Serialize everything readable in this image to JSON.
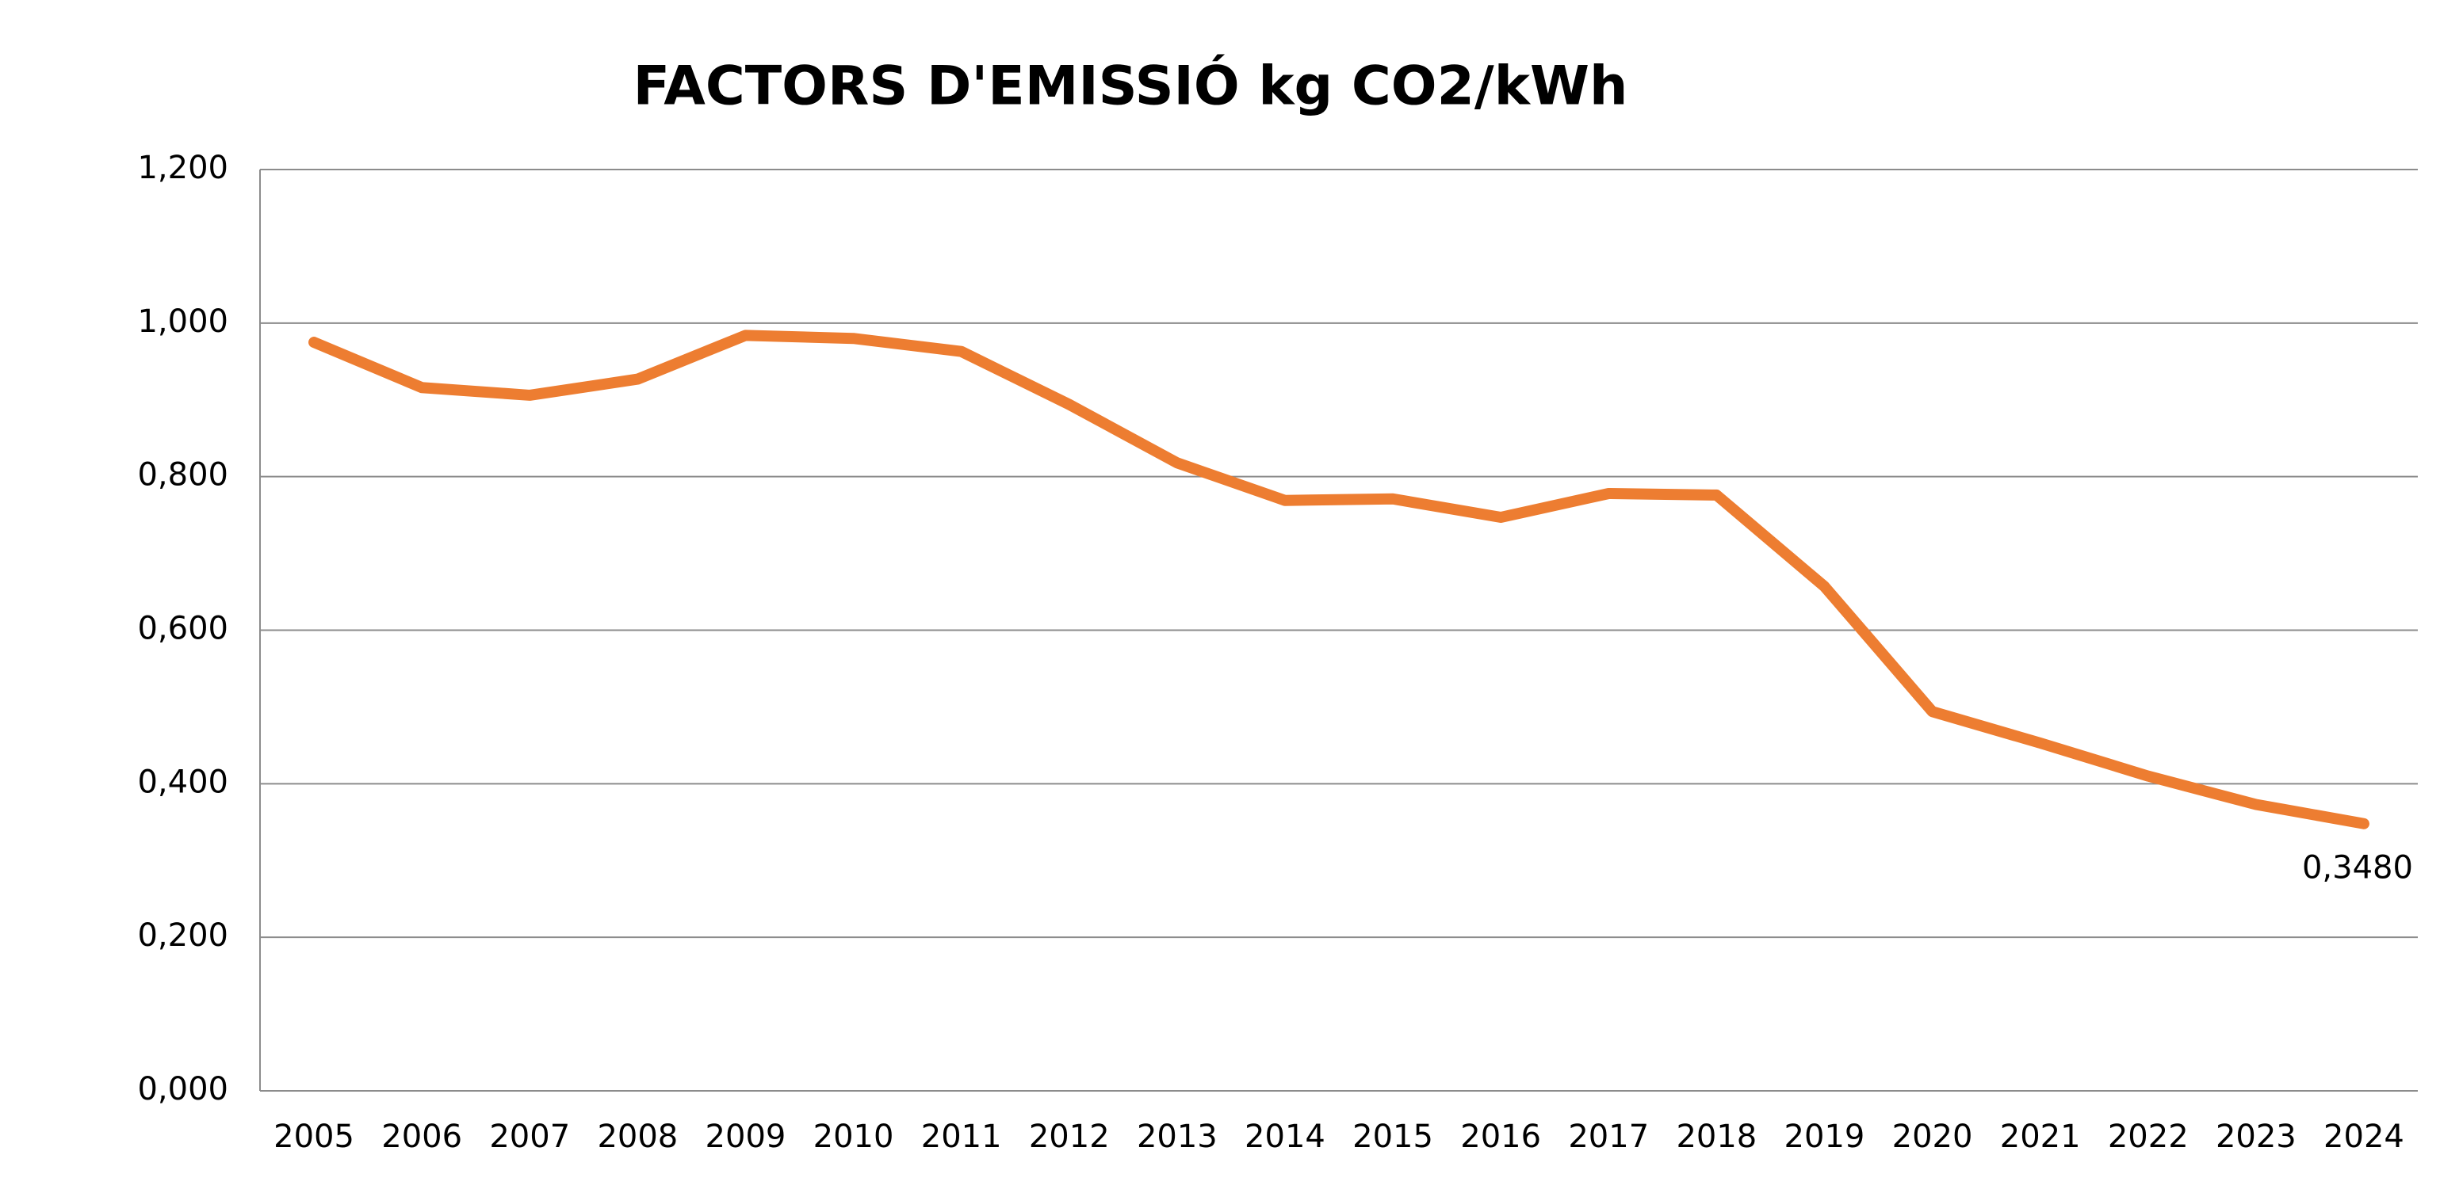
{
  "chart_data": {
    "type": "line",
    "title": "FACTORS D'EMISSIÓ kg CO2/kWh",
    "categories": [
      "2005",
      "2006",
      "2007",
      "2008",
      "2009",
      "2010",
      "2011",
      "2012",
      "2013",
      "2014",
      "2015",
      "2016",
      "2017",
      "2018",
      "2019",
      "2020",
      "2021",
      "2022",
      "2023",
      "2024"
    ],
    "series": [
      {
        "color": "#ED7D31",
        "values": [
          0.975,
          0.916,
          0.906,
          0.927,
          0.984,
          0.98,
          0.963,
          0.894,
          0.818,
          0.769,
          0.771,
          0.747,
          0.778,
          0.776,
          0.657,
          0.494,
          0.453,
          0.41,
          0.373,
          0.348
        ],
        "value_labels": [
          null,
          null,
          null,
          null,
          null,
          null,
          null,
          null,
          null,
          null,
          null,
          null,
          null,
          null,
          null,
          null,
          null,
          null,
          null,
          "0,3480"
        ]
      }
    ],
    "ylim": [
      0,
      1.2
    ],
    "yticks": [
      {
        "value": 0,
        "label": "0,000"
      },
      {
        "value": 0.2,
        "label": "0,200"
      },
      {
        "value": 0.4,
        "label": "0,400"
      },
      {
        "value": 0.6,
        "label": "0,600"
      },
      {
        "value": 0.8,
        "label": "0,800"
      },
      {
        "value": 1.0,
        "label": "1,000"
      },
      {
        "value": 1.2,
        "label": "1,200"
      }
    ],
    "grid": true
  }
}
